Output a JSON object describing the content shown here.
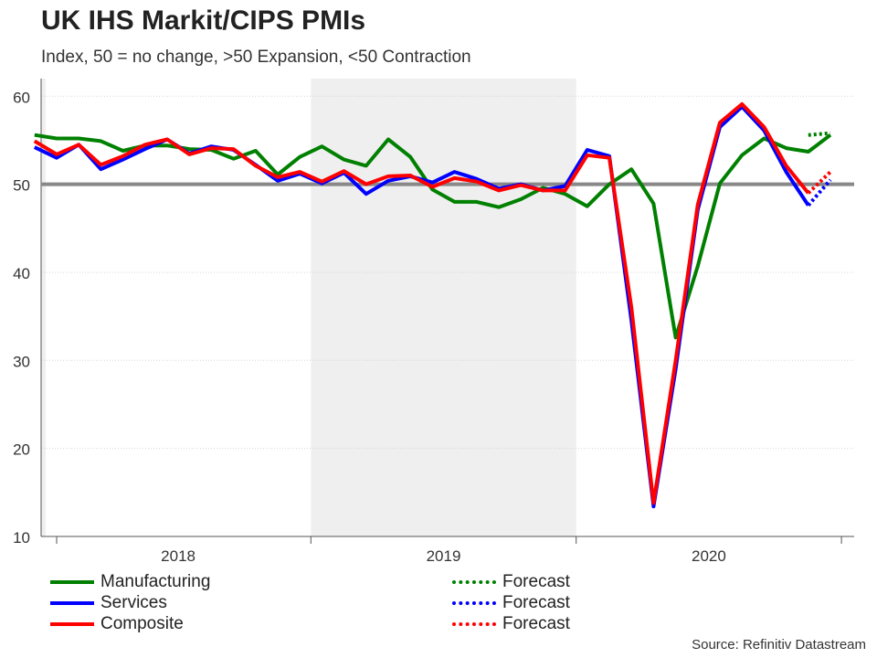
{
  "title": "UK IHS Markit/CIPS PMIs",
  "subtitle": "Index, 50 = no change, >50 Expansion, <50 Contraction",
  "source": "Source: Refinitiv Datastream",
  "legend": {
    "left": [
      {
        "label": "Manufacturing",
        "color": "#008000",
        "style": "solid"
      },
      {
        "label": "Services",
        "color": "#0000ff",
        "style": "solid"
      },
      {
        "label": "Composite",
        "color": "#ff0000",
        "style": "solid"
      }
    ],
    "right": [
      {
        "label": "Forecast",
        "color": "#008000",
        "style": "dotted"
      },
      {
        "label": "Forecast",
        "color": "#0000ff",
        "style": "dotted"
      },
      {
        "label": "Forecast",
        "color": "#ff0000",
        "style": "dotted"
      }
    ]
  },
  "chart_data": {
    "type": "line",
    "x_start": "2017-12",
    "x_end": "2020-12",
    "x_ticks": [
      "2018",
      "2019",
      "2020"
    ],
    "y_ticks": [
      10,
      20,
      30,
      40,
      50,
      60
    ],
    "ylim": [
      10,
      62
    ],
    "reference_line": 50,
    "shaded_periods": [
      [
        "2017-12",
        "2017-12"
      ],
      [
        "2019-01",
        "2019-12"
      ]
    ],
    "grid": "horizontal dotted",
    "legend_position": "bottom",
    "series": [
      {
        "name": "Manufacturing",
        "color": "#008000",
        "style": "solid",
        "start": "2017-12",
        "values": [
          55.6,
          55.2,
          55.2,
          54.9,
          53.8,
          54.4,
          54.4,
          54.0,
          53.9,
          52.9,
          53.8,
          51.1,
          53.1,
          54.3,
          52.8,
          52.1,
          55.1,
          53.1,
          49.4,
          48.0,
          48.0,
          47.4,
          48.3,
          49.6,
          48.9,
          47.5,
          50.0,
          51.7,
          47.8,
          32.6,
          40.7,
          50.1,
          53.3,
          55.2,
          54.1,
          53.7,
          55.6
        ]
      },
      {
        "name": "Services",
        "color": "#0000ff",
        "style": "solid",
        "start": "2017-12",
        "values": [
          54.2,
          53.0,
          54.5,
          51.7,
          52.8,
          54.0,
          55.1,
          53.5,
          54.3,
          53.9,
          52.2,
          50.4,
          51.2,
          50.1,
          51.3,
          48.9,
          50.4,
          50.9,
          50.2,
          51.4,
          50.6,
          49.5,
          50.0,
          49.3,
          49.8,
          53.9,
          53.2,
          34.5,
          13.4,
          29.0,
          47.1,
          56.5,
          58.8,
          56.1,
          51.4,
          47.6
        ]
      },
      {
        "name": "Composite",
        "color": "#ff0000",
        "style": "solid",
        "start": "2017-12",
        "values": [
          54.9,
          53.4,
          54.5,
          52.2,
          53.2,
          54.5,
          55.1,
          53.4,
          54.1,
          54.0,
          52.1,
          50.8,
          51.4,
          50.3,
          51.5,
          50.0,
          50.9,
          51.0,
          49.7,
          50.7,
          50.3,
          49.3,
          49.9,
          49.3,
          49.3,
          53.3,
          53.0,
          36.0,
          13.8,
          30.0,
          47.7,
          57.0,
          59.1,
          56.5,
          52.1,
          49.0
        ]
      },
      {
        "name": "Forecast",
        "color": "#008000",
        "style": "dotted",
        "start": "2020-11",
        "values": [
          55.6,
          55.8
        ]
      },
      {
        "name": "Forecast",
        "color": "#0000ff",
        "style": "dotted",
        "start": "2020-11",
        "values": [
          47.6,
          50.5
        ]
      },
      {
        "name": "Forecast",
        "color": "#ff0000",
        "style": "dotted",
        "start": "2020-11",
        "values": [
          49.0,
          51.4
        ]
      }
    ]
  }
}
